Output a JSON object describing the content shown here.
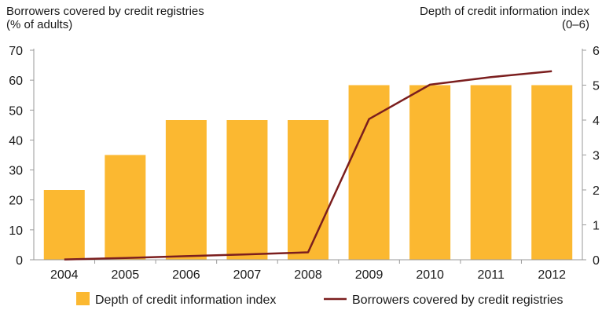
{
  "chart_data": {
    "type": "bar+line",
    "categories": [
      "2004",
      "2005",
      "2006",
      "2007",
      "2008",
      "2009",
      "2010",
      "2011",
      "2012"
    ],
    "series": [
      {
        "name": "Depth of credit information index",
        "type": "bar",
        "axis": "right",
        "color": "#FBB831",
        "values": [
          2,
          3,
          4,
          4,
          4,
          5,
          5,
          5,
          5
        ]
      },
      {
        "name": "Borrowers covered by credit registries",
        "type": "line",
        "axis": "left",
        "color": "#7B1E1E",
        "values": [
          0.1,
          0.6,
          1.2,
          1.8,
          2.5,
          47,
          58.5,
          61,
          63
        ]
      }
    ],
    "left_axis": {
      "title": "Borrowers covered by credit registries",
      "subtitle": "(% of adults)",
      "ylim": [
        0,
        70
      ],
      "ticks": [
        0,
        10,
        20,
        30,
        40,
        50,
        60,
        70
      ]
    },
    "right_axis": {
      "title": "Depth of credit information index",
      "subtitle": "(0–6)",
      "ylim": [
        0,
        6
      ],
      "ticks": [
        0,
        1,
        2,
        3,
        4,
        5,
        6
      ]
    },
    "legend_position": "bottom",
    "grid": false
  }
}
